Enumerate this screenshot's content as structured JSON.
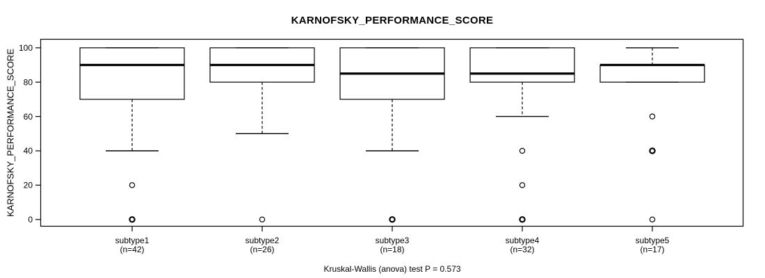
{
  "chart_data": {
    "type": "boxplot",
    "title": "KARNOFSKY_PERFORMANCE_SCORE",
    "ylabel": "KARNOFSKY_PERFORMANCE_SCORE",
    "footer": "Kruskal-Wallis (anova) test P = 0.573",
    "ylim": [
      0,
      100
    ],
    "yticks": [
      0,
      20,
      40,
      60,
      80,
      100
    ],
    "grid": false,
    "legend": "none",
    "categories": [
      "subtype1",
      "subtype2",
      "subtype3",
      "subtype4",
      "subtype5"
    ],
    "category_counts": [
      "(n=42)",
      "(n=26)",
      "(n=18)",
      "(n=32)",
      "(n=17)"
    ],
    "series": [
      {
        "name": "subtype1",
        "n": 42,
        "whisker_low": 40,
        "q1": 70,
        "median": 90,
        "q3": 100,
        "whisker_high": 100,
        "outliers": [
          20,
          0
        ],
        "overplotted_outliers": [
          0
        ]
      },
      {
        "name": "subtype2",
        "n": 26,
        "whisker_low": 50,
        "q1": 80,
        "median": 90,
        "q3": 100,
        "whisker_high": 100,
        "outliers": [
          0
        ],
        "overplotted_outliers": []
      },
      {
        "name": "subtype3",
        "n": 18,
        "whisker_low": 40,
        "q1": 70,
        "median": 85,
        "q3": 100,
        "whisker_high": 100,
        "outliers": [
          0
        ],
        "overplotted_outliers": [
          0
        ]
      },
      {
        "name": "subtype4",
        "n": 32,
        "whisker_low": 60,
        "q1": 80,
        "median": 85,
        "q3": 100,
        "whisker_high": 100,
        "outliers": [
          40,
          20,
          0
        ],
        "overplotted_outliers": [
          0
        ]
      },
      {
        "name": "subtype5",
        "n": 17,
        "whisker_low": 80,
        "q1": 80,
        "median": 90,
        "q3": 90,
        "whisker_high": 100,
        "outliers": [
          60,
          40,
          0
        ],
        "overplotted_outliers": [
          40
        ]
      }
    ],
    "colors": {
      "line": "#000000",
      "box_fill": "#ffffff",
      "background": "#ffffff"
    }
  }
}
